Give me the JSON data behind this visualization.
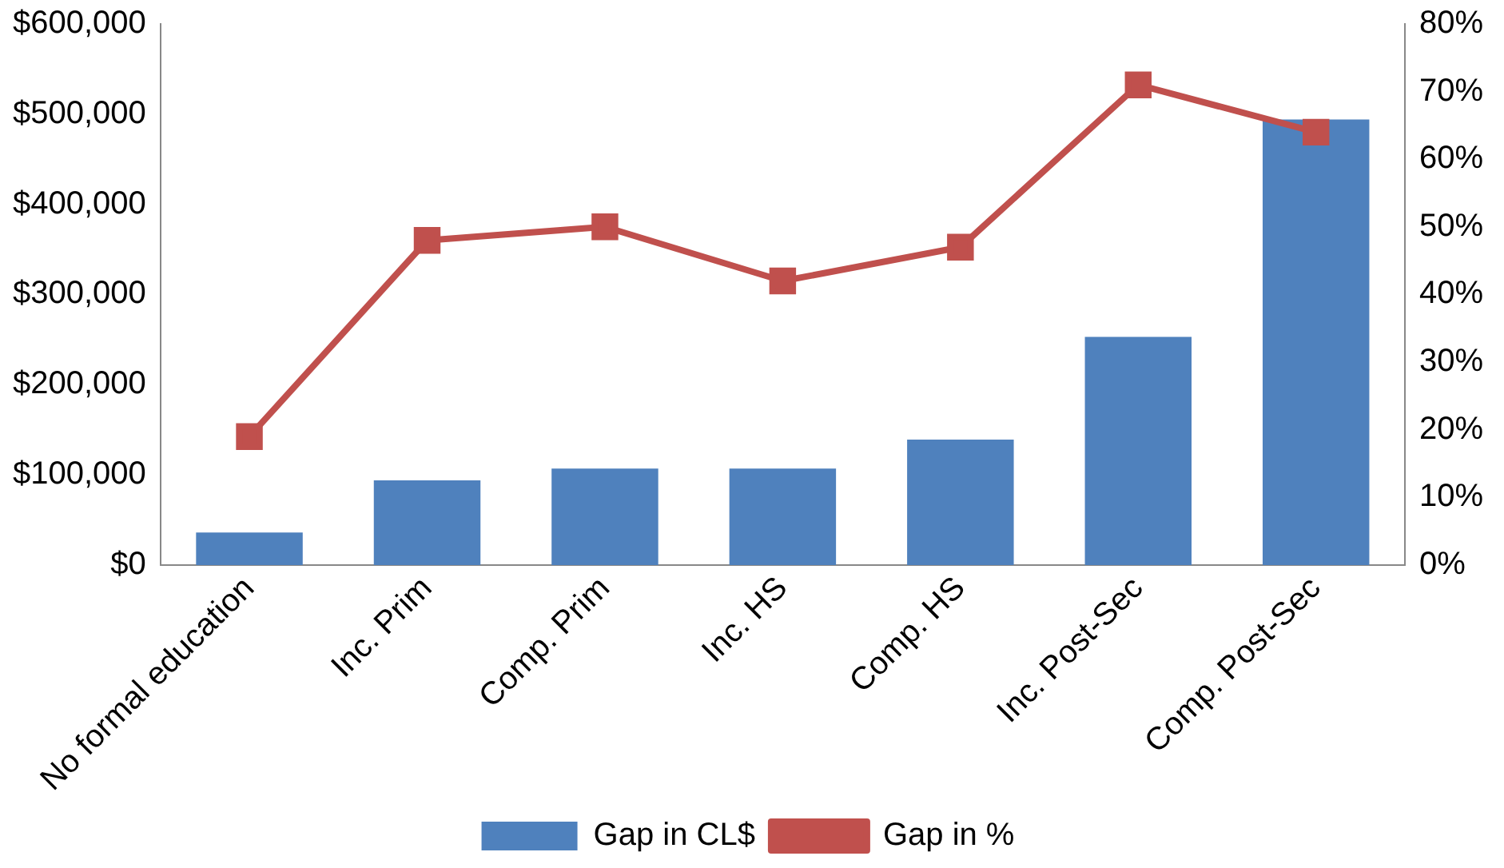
{
  "chart_data": {
    "type": "bar",
    "categories": [
      "No formal education",
      "Inc. Prim",
      "Comp. Prim",
      "Inc. HS",
      "Comp. HS",
      "Inc. Post-Sec",
      "Comp. Post-Sec"
    ],
    "series": [
      {
        "name": "Gap in CL$",
        "color": "#4f81bd",
        "values": [
          36000,
          94000,
          107000,
          107000,
          139000,
          253000,
          494000
        ]
      },
      {
        "name": "Gap in %",
        "type": "line",
        "axis": "y2",
        "color": "#c0504d",
        "marker": "square",
        "values": [
          19,
          48,
          50,
          42,
          47,
          71,
          64
        ]
      }
    ],
    "ylim": [
      0,
      600000
    ],
    "yticks": [
      {
        "value": 0,
        "label": "$0"
      },
      {
        "value": 100000,
        "label": "$100,000"
      },
      {
        "value": 200000,
        "label": "$200,000"
      },
      {
        "value": 300000,
        "label": "$300,000"
      },
      {
        "value": 400000,
        "label": "$400,000"
      },
      {
        "value": 500000,
        "label": "$500,000"
      },
      {
        "value": 600000,
        "label": "$600,000"
      }
    ],
    "y2lim": [
      0,
      80
    ],
    "y2ticks": [
      {
        "value": 0,
        "label": "0%"
      },
      {
        "value": 10,
        "label": "10%"
      },
      {
        "value": 20,
        "label": "20%"
      },
      {
        "value": 30,
        "label": "30%"
      },
      {
        "value": 40,
        "label": "40%"
      },
      {
        "value": 50,
        "label": "50%"
      },
      {
        "value": 60,
        "label": "60%"
      },
      {
        "value": 70,
        "label": "70%"
      },
      {
        "value": 80,
        "label": "80%"
      }
    ],
    "grid": false,
    "legend": "bottom"
  }
}
